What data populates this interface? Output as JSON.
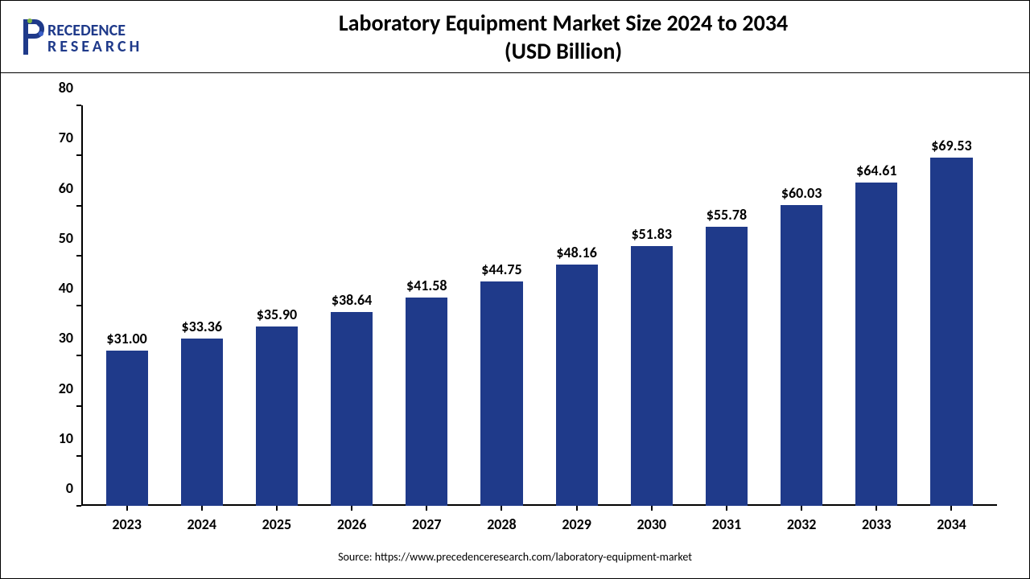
{
  "logo": {
    "line1": "PRECEDENCE",
    "line2": "RESEARCH",
    "icon_color": "#1f3a8a",
    "text_color": "#1f3a8a"
  },
  "chart": {
    "type": "bar",
    "title_line1": "Laboratory Equipment Market Size 2024 to 2034",
    "title_line2": "(USD Billion)",
    "title_fontsize": 28,
    "categories": [
      "2023",
      "2024",
      "2025",
      "2026",
      "2027",
      "2028",
      "2029",
      "2030",
      "2031",
      "2032",
      "2033",
      "2034"
    ],
    "values": [
      31.0,
      33.36,
      35.9,
      38.64,
      41.58,
      44.75,
      48.16,
      51.83,
      55.78,
      60.03,
      64.61,
      69.53
    ],
    "data_labels": [
      "$31.00",
      "$33.36",
      "$35.90",
      "$38.64",
      "$41.58",
      "$44.75",
      "$48.16",
      "$51.83",
      "$55.78",
      "$60.03",
      "$64.61",
      "$69.53"
    ],
    "bar_color": "#1f3a8a",
    "ylim": [
      0,
      80
    ],
    "ytick_step": 10,
    "yticks": [
      "0",
      "10",
      "20",
      "30",
      "40",
      "50",
      "60",
      "70",
      "80"
    ],
    "axis_color": "#000000",
    "background_color": "#ffffff",
    "label_fontsize": 18,
    "data_label_fontsize": 18,
    "bar_width_ratio": 0.56
  },
  "source": {
    "prefix": "Source: ",
    "url": "https://www.precedenceresearch.com/laboratory-equipment-market"
  }
}
